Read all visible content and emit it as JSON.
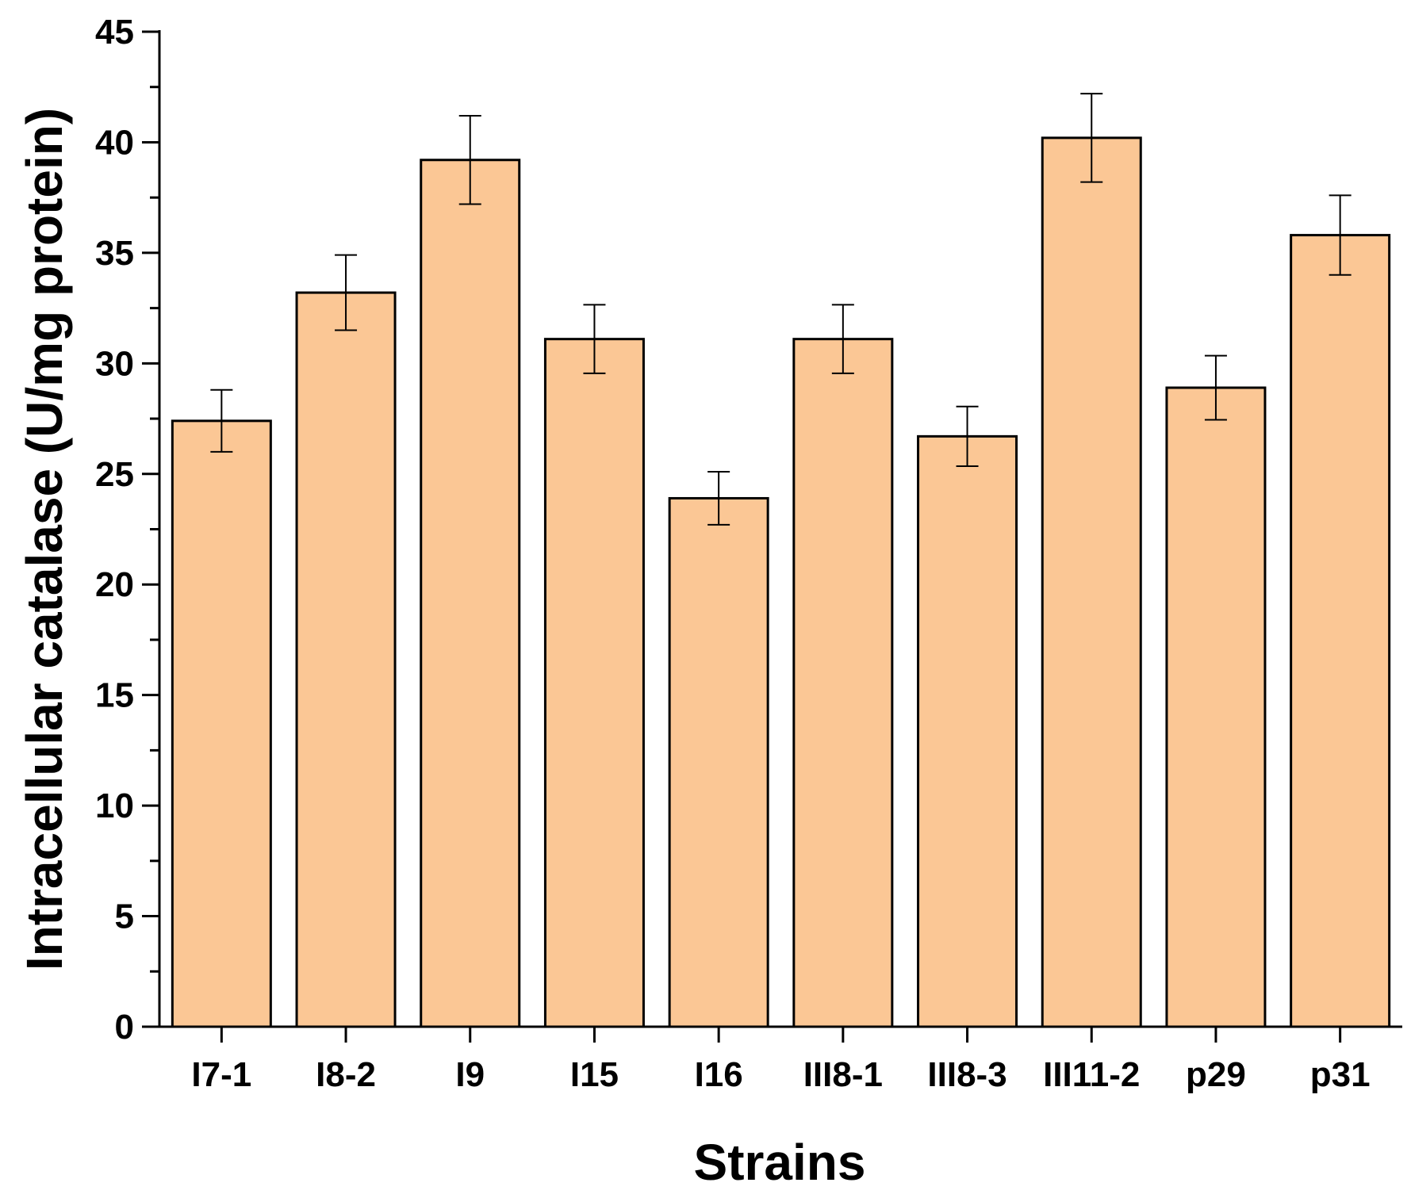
{
  "chart_data": {
    "type": "bar",
    "title": "",
    "xlabel": "Strains",
    "ylabel": "Intracellular catalase (U/mg protein)",
    "categories": [
      "I7-1",
      "I8-2",
      "I9",
      "I15",
      "I16",
      "III8-1",
      "III8-3",
      "III11-2",
      "p29",
      "p31"
    ],
    "values": [
      27.4,
      33.2,
      39.2,
      31.1,
      23.9,
      31.1,
      26.7,
      40.2,
      28.9,
      35.8
    ],
    "errors": [
      1.4,
      1.7,
      2.0,
      1.55,
      1.2,
      1.55,
      1.35,
      2.0,
      1.45,
      1.8
    ],
    "ylim": [
      0,
      45
    ],
    "yticks": [
      0,
      5,
      10,
      15,
      20,
      25,
      30,
      35,
      40,
      45
    ],
    "grid": false,
    "bar_color": "#fbc795",
    "bar_edge_color": "#000000",
    "error_bar_color": "#000000"
  }
}
